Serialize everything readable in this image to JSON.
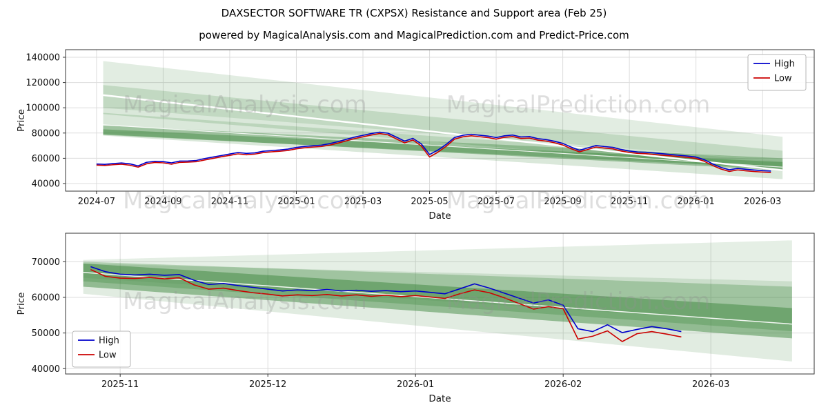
{
  "title": "DAXSECTOR SOFTWARE TR (CXPSX) Resistance and Support area (Feb 25)",
  "subtitle": "powered by MagicalAnalysis.com and MagicalPrediction.com and Predict-Price.com",
  "watermarks": {
    "analysis": "MagicalAnalysis.com",
    "prediction": "MagicalPrediction.com"
  },
  "colors": {
    "high": "#0000cc",
    "low": "#cc0000",
    "band_green": "#338033",
    "grid": "#dcdcdc",
    "spine": "#333333"
  },
  "chart_data": [
    {
      "type": "line",
      "xlabel": "Date",
      "ylabel": "Price",
      "grid": true,
      "xlim": [
        -0.93,
        21.55
      ],
      "ylim": [
        34000,
        146000
      ],
      "x_unit": "months since 2024-07",
      "xticks": [
        {
          "v": 0,
          "label": "2024-07"
        },
        {
          "v": 2,
          "label": "2024-09"
        },
        {
          "v": 4,
          "label": "2024-11"
        },
        {
          "v": 6,
          "label": "2025-01"
        },
        {
          "v": 8,
          "label": "2025-03"
        },
        {
          "v": 10,
          "label": "2025-05"
        },
        {
          "v": 12,
          "label": "2025-07"
        },
        {
          "v": 14,
          "label": "2025-09"
        },
        {
          "v": 16,
          "label": "2025-11"
        },
        {
          "v": 18,
          "label": "2026-01"
        },
        {
          "v": 20,
          "label": "2026-03"
        }
      ],
      "yticks": [
        {
          "v": 40000,
          "label": "40000"
        },
        {
          "v": 60000,
          "label": "60000"
        },
        {
          "v": 80000,
          "label": "80000"
        },
        {
          "v": 100000,
          "label": "100000"
        },
        {
          "v": 120000,
          "label": "120000"
        },
        {
          "v": 140000,
          "label": "140000"
        }
      ],
      "legend": {
        "position": "top-right"
      },
      "series": [
        {
          "name": "High",
          "color": "#0000cc",
          "x0": 0,
          "dx": 0.25,
          "values": [
            55500,
            55200,
            55800,
            56300,
            55600,
            54000,
            56800,
            57600,
            57400,
            56400,
            57800,
            57900,
            58300,
            59800,
            61000,
            62200,
            63400,
            64600,
            63900,
            64300,
            65600,
            66100,
            66600,
            67300,
            68600,
            69400,
            69900,
            70400,
            71600,
            73200,
            75000,
            76800,
            78200,
            79600,
            80700,
            79900,
            76800,
            73600,
            75800,
            71500,
            63000,
            66500,
            71000,
            76500,
            78200,
            79000,
            78300,
            77600,
            76400,
            77800,
            78400,
            76900,
            77200,
            75600,
            74800,
            73500,
            71800,
            68900,
            66400,
            68200,
            70100,
            69300,
            68700,
            67000,
            65800,
            65000,
            64800,
            64200,
            63600,
            63000,
            62400,
            61800,
            61000,
            58900,
            55600,
            52800,
            50900,
            52000,
            51300,
            50700,
            50200,
            49900
          ]
        },
        {
          "name": "Low",
          "color": "#cc0000",
          "x0": 0,
          "dx": 0.25,
          "values": [
            54600,
            54300,
            54900,
            55300,
            54500,
            53000,
            55600,
            56700,
            56400,
            55300,
            56800,
            57000,
            57300,
            58700,
            59900,
            61200,
            62300,
            63500,
            62800,
            63300,
            64500,
            65100,
            65600,
            66200,
            67500,
            68300,
            68900,
            69300,
            70400,
            72000,
            73800,
            75600,
            77000,
            78400,
            79600,
            78600,
            75400,
            72200,
            74500,
            69800,
            61000,
            64800,
            69500,
            75200,
            77000,
            77800,
            77100,
            76400,
            75200,
            76600,
            77200,
            75700,
            76000,
            74400,
            73600,
            72300,
            70500,
            67600,
            65100,
            67000,
            68900,
            68100,
            67500,
            65800,
            64600,
            63900,
            63600,
            63000,
            62400,
            61900,
            61300,
            60700,
            59900,
            57600,
            54300,
            51500,
            49600,
            50800,
            50100,
            49500,
            49100,
            48800
          ]
        }
      ],
      "bands": [
        {
          "color": "#338033",
          "opacity": 0.14,
          "points": [
            [
              0.2,
              137000
            ],
            [
              20.6,
              77000
            ],
            [
              20.6,
              58000
            ],
            [
              0.2,
              100000
            ]
          ]
        },
        {
          "color": "#338033",
          "opacity": 0.18,
          "points": [
            [
              0.2,
              118000
            ],
            [
              20.6,
              66000
            ],
            [
              20.6,
              50000
            ],
            [
              0.2,
              95000
            ]
          ]
        },
        {
          "color": "#338033",
          "opacity": 0.18,
          "points": [
            [
              0.2,
              96000
            ],
            [
              20.6,
              58000
            ],
            [
              20.6,
              43500
            ],
            [
              0.2,
              78000
            ]
          ]
        },
        {
          "color": "#338033",
          "opacity": 0.35,
          "points": [
            [
              0.2,
              86000
            ],
            [
              20.6,
              60000
            ],
            [
              20.6,
              52000
            ],
            [
              0.2,
              78500
            ]
          ]
        },
        {
          "color": "#338033",
          "opacity": 0.4,
          "points": [
            [
              0.2,
              83000
            ],
            [
              20.6,
              57000
            ],
            [
              20.6,
              50500
            ],
            [
              0.2,
              79000
            ]
          ]
        }
      ],
      "trend_lines": [
        {
          "color": "#ffffff",
          "width": 2.5,
          "opacity": 1,
          "points": [
            [
              0.2,
              110000
            ],
            [
              20.6,
              50500
            ]
          ]
        },
        {
          "color": "#ffffff",
          "width": 1.2,
          "opacity": 0.85,
          "points": [
            [
              0.2,
              86500
            ],
            [
              20.6,
              53000
            ]
          ]
        }
      ]
    },
    {
      "type": "line",
      "xlabel": "Date",
      "ylabel": "Price",
      "grid": true,
      "xlim": [
        -0.37,
        4.7
      ],
      "ylim": [
        38500,
        78000
      ],
      "x_unit": "months since 2025-11",
      "xticks": [
        {
          "v": 0,
          "label": "2025-11"
        },
        {
          "v": 1,
          "label": "2025-12"
        },
        {
          "v": 2,
          "label": "2026-01"
        },
        {
          "v": 3,
          "label": "2026-02"
        },
        {
          "v": 4,
          "label": "2026-03"
        }
      ],
      "yticks": [
        {
          "v": 40000,
          "label": "40000"
        },
        {
          "v": 50000,
          "label": "50000"
        },
        {
          "v": 60000,
          "label": "60000"
        },
        {
          "v": 70000,
          "label": "70000"
        }
      ],
      "legend": {
        "position": "bottom-left"
      },
      "series": [
        {
          "name": "High",
          "color": "#0000cc",
          "x0": -0.2,
          "dx": 0.1,
          "values": [
            68600,
            67200,
            66500,
            66300,
            66500,
            66200,
            66400,
            64800,
            63600,
            63900,
            63300,
            62800,
            62300,
            61800,
            62100,
            61900,
            62200,
            61800,
            62000,
            61700,
            61900,
            61600,
            61800,
            61400,
            61000,
            62400,
            63800,
            62600,
            61200,
            59800,
            58400,
            59300,
            57800,
            51200,
            50400,
            52300,
            50100,
            51000,
            51800,
            51200,
            50400
          ]
        },
        {
          "name": "Low",
          "color": "#cc0000",
          "x0": -0.2,
          "dx": 0.1,
          "values": [
            67800,
            65900,
            65400,
            65300,
            65600,
            65200,
            65500,
            63500,
            62300,
            62600,
            61900,
            61300,
            60900,
            60400,
            60700,
            60500,
            60800,
            60400,
            60700,
            60300,
            60600,
            60200,
            60500,
            60100,
            59700,
            61000,
            62100,
            61300,
            59900,
            58300,
            56700,
            57400,
            56800,
            48300,
            49100,
            50600,
            47600,
            49800,
            50400,
            49700,
            48900
          ]
        }
      ],
      "bands": [
        {
          "color": "#338033",
          "opacity": 0.13,
          "points": [
            [
              -0.25,
              70500
            ],
            [
              4.55,
              76000
            ],
            [
              4.55,
              52500
            ],
            [
              -0.25,
              65500
            ]
          ]
        },
        {
          "color": "#338033",
          "opacity": 0.15,
          "points": [
            [
              -0.25,
              69500
            ],
            [
              4.55,
              64500
            ],
            [
              4.55,
              42000
            ],
            [
              -0.25,
              61000
            ]
          ]
        },
        {
          "color": "#338033",
          "opacity": 0.28,
          "points": [
            [
              -0.25,
              70000
            ],
            [
              4.55,
              63000
            ],
            [
              4.55,
              50500
            ],
            [
              -0.25,
              64500
            ]
          ]
        },
        {
          "color": "#338033",
          "opacity": 0.45,
          "points": [
            [
              -0.25,
              69500
            ],
            [
              4.55,
              57000
            ],
            [
              4.55,
              48500
            ],
            [
              -0.25,
              63000
            ]
          ]
        }
      ],
      "trend_lines": [
        {
          "color": "#ffffff",
          "width": 1.5,
          "opacity": 0.9,
          "points": [
            [
              -0.25,
              67000
            ],
            [
              4.55,
              52500
            ]
          ]
        }
      ]
    }
  ]
}
